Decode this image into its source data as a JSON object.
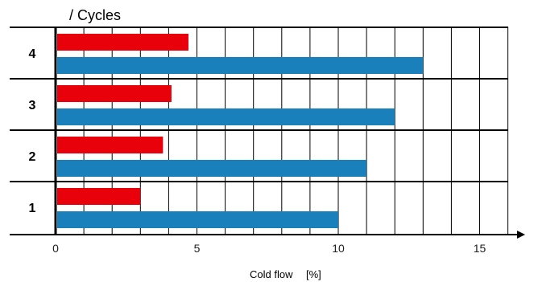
{
  "chart_data": {
    "type": "bar",
    "orientation": "horizontal",
    "categories": [
      "1",
      "2",
      "3",
      "4"
    ],
    "series": [
      {
        "color": "#e8000b",
        "values": [
          3.0,
          3.8,
          4.1,
          4.7
        ]
      },
      {
        "color": "#1a80bb",
        "values": [
          10.0,
          11.0,
          12.0,
          13.0
        ]
      }
    ],
    "ylabel": "/ Cycles",
    "xlabel": "Cold flow",
    "xunit": "[%]",
    "xlim": [
      0,
      16.5
    ],
    "xticks": [
      0,
      5,
      10,
      15
    ],
    "grid_step": 1,
    "grid": true,
    "legend": "none"
  }
}
